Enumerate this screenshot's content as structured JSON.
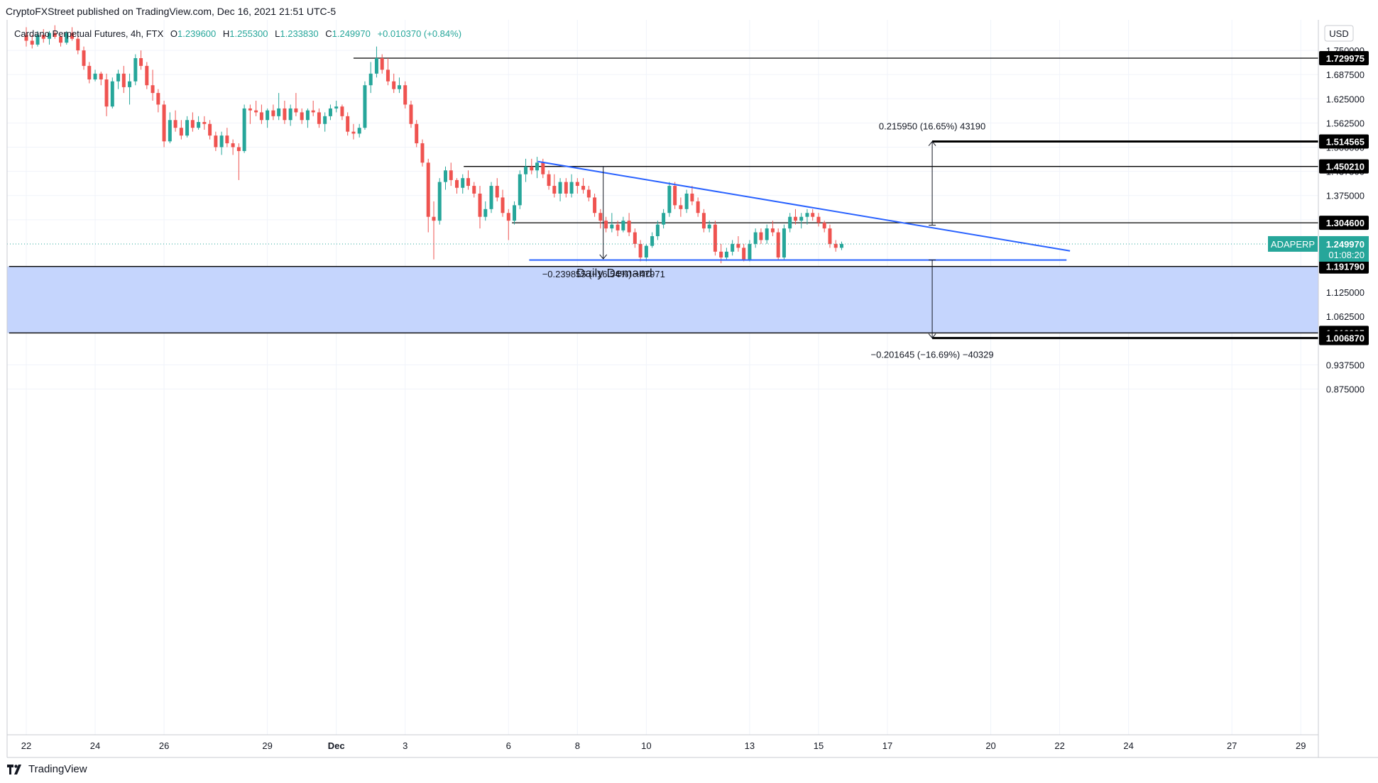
{
  "header": {
    "published": "CryptoFXStreet published on TradingView.com, Dec 16, 2021 21:51 UTC-5",
    "symbol": "Cardano Perpetual Futures, 4h, FTX",
    "o_label": "O",
    "o": "1.239600",
    "h_label": "H",
    "h": "1.255300",
    "l_label": "L",
    "l": "1.233830",
    "c_label": "C",
    "c": "1.249970",
    "change": "+0.010370 (+0.84%)"
  },
  "currency_button": "USD",
  "footer": {
    "brand": "TradingView"
  },
  "colors": {
    "up": "#26a69a",
    "down": "#ef5350",
    "trendline": "#2962ff",
    "demand_zone": "#c5d5fd",
    "price_tag": "#26a69a",
    "level_tag": "#000000"
  },
  "chart_data": {
    "type": "candlestick",
    "symbol": "ADAPERP",
    "timeframe": "4h",
    "y_ticks": [
      "1.750000",
      "1.687500",
      "1.625000",
      "1.562500",
      "1.500000",
      "1.437500",
      "1.375000",
      "1.312500",
      "1.125000",
      "1.062500",
      "0.937500",
      "0.875000"
    ],
    "ylim": [
      0.85,
      1.8
    ],
    "x_ticks": [
      {
        "label": "22",
        "day": 22
      },
      {
        "label": "24",
        "day": 24
      },
      {
        "label": "26",
        "day": 26
      },
      {
        "label": "29",
        "day": 29
      },
      {
        "label": "Dec",
        "day": 31
      },
      {
        "label": "3",
        "day": 33
      },
      {
        "label": "6",
        "day": 36
      },
      {
        "label": "8",
        "day": 38
      },
      {
        "label": "10",
        "day": 40
      },
      {
        "label": "13",
        "day": 43
      },
      {
        "label": "15",
        "day": 45
      },
      {
        "label": "17",
        "day": 47
      },
      {
        "label": "20",
        "day": 50
      },
      {
        "label": "22",
        "day": 52
      },
      {
        "label": "24",
        "day": 54
      },
      {
        "label": "27",
        "day": 57
      },
      {
        "label": "29",
        "day": 59
      }
    ],
    "x_range_days": [
      21.5,
      60.3
    ],
    "levels": [
      {
        "label": "1.729975",
        "value": 1.729975,
        "x_from_day": 31.5,
        "thick": false
      },
      {
        "label": "1.514565",
        "value": 1.514565,
        "x_from_day": 48.3,
        "thick": true
      },
      {
        "label": "1.450210",
        "value": 1.45021,
        "x_from_day": 34.7,
        "thick": false
      },
      {
        "label": "1.304600",
        "value": 1.3046,
        "x_from_day": 36.1,
        "thick": false
      },
      {
        "label": "1.191790",
        "value": 1.19179,
        "x_from_day": 21.5,
        "thick": false
      },
      {
        "label": "1.019995",
        "value": 1.019995,
        "x_from_day": 21.5,
        "thick": false
      },
      {
        "label": "1.006870",
        "value": 1.00687,
        "x_from_day": 48.3,
        "thick": true
      }
    ],
    "current_price": {
      "symbol": "ADAPERP",
      "price": "1.249970",
      "countdown": "01:08:20",
      "value": 1.24997
    },
    "demand_zone": {
      "label": "Daily Demand",
      "top": 1.19179,
      "bottom": 1.019995
    },
    "trendlines": [
      {
        "name": "descending",
        "x1_day": 36.85,
        "y1": 1.463,
        "x2_day": 52.3,
        "y2": 1.232
      },
      {
        "name": "support",
        "x1_day": 36.6,
        "y1": 1.2085,
        "x2_day": 52.2,
        "y2": 1.2085
      }
    ],
    "measurements": [
      {
        "text": "0.215950 (16.65%) 43190",
        "x_day": 48.3,
        "from": 1.2985,
        "to": 1.5145
      },
      {
        "text": "−0.239855 (−16.54%) −47971",
        "x_day": 38.75,
        "from": 1.45,
        "to": 1.2115
      },
      {
        "text": "−0.201645 (−16.69%) −40329",
        "x_day": 48.3,
        "from": 1.2085,
        "to": 1.0069
      }
    ],
    "candles": [
      [
        22.0,
        1.79,
        1.81,
        1.76,
        1.775
      ],
      [
        22.17,
        1.775,
        1.79,
        1.755,
        1.765
      ],
      [
        22.33,
        1.765,
        1.8,
        1.76,
        1.79
      ],
      [
        22.5,
        1.79,
        1.805,
        1.77,
        1.78
      ],
      [
        22.67,
        1.78,
        1.8,
        1.765,
        1.795
      ],
      [
        22.83,
        1.795,
        1.815,
        1.78,
        1.785
      ],
      [
        23.0,
        1.785,
        1.79,
        1.76,
        1.77
      ],
      [
        23.17,
        1.77,
        1.8,
        1.765,
        1.795
      ],
      [
        23.33,
        1.795,
        1.81,
        1.775,
        1.78
      ],
      [
        23.5,
        1.78,
        1.79,
        1.74,
        1.75
      ],
      [
        23.67,
        1.75,
        1.76,
        1.7,
        1.71
      ],
      [
        23.83,
        1.71,
        1.72,
        1.665,
        1.675
      ],
      [
        24.0,
        1.675,
        1.7,
        1.67,
        1.69
      ],
      [
        24.17,
        1.69,
        1.695,
        1.66,
        1.675
      ],
      [
        24.33,
        1.675,
        1.69,
        1.58,
        1.605
      ],
      [
        24.5,
        1.605,
        1.68,
        1.6,
        1.67
      ],
      [
        24.67,
        1.67,
        1.7,
        1.65,
        1.69
      ],
      [
        24.83,
        1.69,
        1.71,
        1.64,
        1.655
      ],
      [
        25.0,
        1.655,
        1.69,
        1.61,
        1.67
      ],
      [
        25.17,
        1.67,
        1.74,
        1.66,
        1.73
      ],
      [
        25.33,
        1.73,
        1.75,
        1.7,
        1.71
      ],
      [
        25.5,
        1.71,
        1.72,
        1.65,
        1.66
      ],
      [
        25.67,
        1.66,
        1.7,
        1.62,
        1.64
      ],
      [
        25.83,
        1.64,
        1.65,
        1.59,
        1.61
      ],
      [
        26.0,
        1.61,
        1.62,
        1.5,
        1.515
      ],
      [
        26.17,
        1.515,
        1.59,
        1.51,
        1.57
      ],
      [
        26.33,
        1.57,
        1.595,
        1.54,
        1.55
      ],
      [
        26.5,
        1.55,
        1.57,
        1.52,
        1.53
      ],
      [
        26.67,
        1.53,
        1.58,
        1.525,
        1.57
      ],
      [
        26.83,
        1.57,
        1.59,
        1.54,
        1.55
      ],
      [
        27.0,
        1.55,
        1.58,
        1.545,
        1.565
      ],
      [
        27.17,
        1.565,
        1.58,
        1.545,
        1.56
      ],
      [
        27.33,
        1.56,
        1.57,
        1.52,
        1.53
      ],
      [
        27.5,
        1.53,
        1.54,
        1.49,
        1.5
      ],
      [
        27.67,
        1.5,
        1.54,
        1.48,
        1.53
      ],
      [
        27.83,
        1.53,
        1.55,
        1.5,
        1.51
      ],
      [
        28.0,
        1.51,
        1.52,
        1.48,
        1.5
      ],
      [
        28.17,
        1.5,
        1.51,
        1.415,
        1.49
      ],
      [
        28.33,
        1.49,
        1.61,
        1.485,
        1.6
      ],
      [
        28.5,
        1.6,
        1.61,
        1.56,
        1.595
      ],
      [
        28.67,
        1.595,
        1.62,
        1.58,
        1.59
      ],
      [
        28.83,
        1.59,
        1.61,
        1.56,
        1.57
      ],
      [
        29.0,
        1.57,
        1.6,
        1.55,
        1.595
      ],
      [
        29.17,
        1.595,
        1.61,
        1.57,
        1.58
      ],
      [
        29.33,
        1.58,
        1.64,
        1.57,
        1.6
      ],
      [
        29.5,
        1.6,
        1.62,
        1.56,
        1.57
      ],
      [
        29.67,
        1.57,
        1.61,
        1.555,
        1.6
      ],
      [
        29.83,
        1.6,
        1.64,
        1.58,
        1.59
      ],
      [
        30.0,
        1.59,
        1.6,
        1.56,
        1.57
      ],
      [
        30.17,
        1.57,
        1.6,
        1.55,
        1.595
      ],
      [
        30.33,
        1.595,
        1.62,
        1.58,
        1.59
      ],
      [
        30.5,
        1.59,
        1.6,
        1.55,
        1.56
      ],
      [
        30.67,
        1.56,
        1.59,
        1.54,
        1.58
      ],
      [
        30.83,
        1.58,
        1.61,
        1.57,
        1.6
      ],
      [
        31.0,
        1.6,
        1.62,
        1.59,
        1.605
      ],
      [
        31.17,
        1.605,
        1.61,
        1.57,
        1.58
      ],
      [
        31.33,
        1.58,
        1.59,
        1.53,
        1.54
      ],
      [
        31.5,
        1.54,
        1.56,
        1.52,
        1.535
      ],
      [
        31.67,
        1.535,
        1.56,
        1.525,
        1.55
      ],
      [
        31.83,
        1.55,
        1.67,
        1.545,
        1.66
      ],
      [
        32.0,
        1.66,
        1.72,
        1.64,
        1.69
      ],
      [
        32.17,
        1.69,
        1.76,
        1.68,
        1.73
      ],
      [
        32.33,
        1.73,
        1.74,
        1.69,
        1.7
      ],
      [
        32.5,
        1.7,
        1.73,
        1.66,
        1.67
      ],
      [
        32.67,
        1.67,
        1.69,
        1.64,
        1.65
      ],
      [
        32.83,
        1.65,
        1.68,
        1.64,
        1.66
      ],
      [
        33.0,
        1.66,
        1.67,
        1.6,
        1.61
      ],
      [
        33.17,
        1.61,
        1.62,
        1.55,
        1.56
      ],
      [
        33.33,
        1.56,
        1.57,
        1.5,
        1.51
      ],
      [
        33.5,
        1.51,
        1.52,
        1.45,
        1.46
      ],
      [
        33.67,
        1.46,
        1.47,
        1.28,
        1.32
      ],
      [
        33.83,
        1.32,
        1.36,
        1.21,
        1.31
      ],
      [
        34.0,
        1.31,
        1.42,
        1.3,
        1.41
      ],
      [
        34.17,
        1.41,
        1.45,
        1.39,
        1.44
      ],
      [
        34.33,
        1.44,
        1.46,
        1.4,
        1.415
      ],
      [
        34.5,
        1.415,
        1.42,
        1.38,
        1.395
      ],
      [
        34.67,
        1.395,
        1.43,
        1.38,
        1.42
      ],
      [
        34.83,
        1.42,
        1.44,
        1.39,
        1.4
      ],
      [
        35.0,
        1.4,
        1.41,
        1.37,
        1.38
      ],
      [
        35.17,
        1.38,
        1.4,
        1.29,
        1.32
      ],
      [
        35.33,
        1.32,
        1.36,
        1.31,
        1.34
      ],
      [
        35.5,
        1.34,
        1.41,
        1.33,
        1.4
      ],
      [
        35.67,
        1.4,
        1.42,
        1.36,
        1.37
      ],
      [
        35.83,
        1.37,
        1.39,
        1.32,
        1.33
      ],
      [
        36.0,
        1.33,
        1.34,
        1.26,
        1.31
      ],
      [
        36.17,
        1.31,
        1.36,
        1.3,
        1.35
      ],
      [
        36.33,
        1.35,
        1.44,
        1.34,
        1.43
      ],
      [
        36.5,
        1.43,
        1.47,
        1.41,
        1.45
      ],
      [
        36.67,
        1.45,
        1.47,
        1.43,
        1.44
      ],
      [
        36.83,
        1.44,
        1.475,
        1.42,
        1.46
      ],
      [
        37.0,
        1.46,
        1.47,
        1.42,
        1.43
      ],
      [
        37.17,
        1.43,
        1.44,
        1.39,
        1.4
      ],
      [
        37.33,
        1.4,
        1.43,
        1.37,
        1.38
      ],
      [
        37.5,
        1.38,
        1.42,
        1.36,
        1.41
      ],
      [
        37.67,
        1.41,
        1.42,
        1.37,
        1.38
      ],
      [
        37.83,
        1.38,
        1.43,
        1.37,
        1.41
      ],
      [
        38.0,
        1.41,
        1.42,
        1.38,
        1.4
      ],
      [
        38.17,
        1.4,
        1.42,
        1.38,
        1.39
      ],
      [
        38.33,
        1.39,
        1.4,
        1.36,
        1.37
      ],
      [
        38.5,
        1.37,
        1.38,
        1.32,
        1.33
      ],
      [
        38.67,
        1.33,
        1.34,
        1.29,
        1.31
      ],
      [
        38.83,
        1.31,
        1.32,
        1.28,
        1.29
      ],
      [
        39.0,
        1.29,
        1.33,
        1.28,
        1.3
      ],
      [
        39.17,
        1.3,
        1.31,
        1.27,
        1.285
      ],
      [
        39.33,
        1.285,
        1.32,
        1.28,
        1.31
      ],
      [
        39.5,
        1.31,
        1.33,
        1.27,
        1.28
      ],
      [
        39.67,
        1.28,
        1.29,
        1.24,
        1.25
      ],
      [
        39.83,
        1.25,
        1.26,
        1.205,
        1.215
      ],
      [
        40.0,
        1.215,
        1.25,
        1.205,
        1.245
      ],
      [
        40.17,
        1.245,
        1.28,
        1.24,
        1.27
      ],
      [
        40.33,
        1.27,
        1.31,
        1.26,
        1.3
      ],
      [
        40.5,
        1.3,
        1.34,
        1.29,
        1.33
      ],
      [
        40.67,
        1.33,
        1.41,
        1.32,
        1.4
      ],
      [
        40.83,
        1.4,
        1.41,
        1.34,
        1.35
      ],
      [
        41.0,
        1.35,
        1.37,
        1.32,
        1.34
      ],
      [
        41.17,
        1.34,
        1.39,
        1.33,
        1.38
      ],
      [
        41.33,
        1.38,
        1.4,
        1.35,
        1.36
      ],
      [
        41.5,
        1.36,
        1.37,
        1.32,
        1.33
      ],
      [
        41.67,
        1.33,
        1.34,
        1.28,
        1.29
      ],
      [
        41.83,
        1.29,
        1.31,
        1.28,
        1.3
      ],
      [
        42.0,
        1.3,
        1.31,
        1.22,
        1.23
      ],
      [
        42.17,
        1.23,
        1.25,
        1.2,
        1.215
      ],
      [
        42.33,
        1.215,
        1.24,
        1.21,
        1.23
      ],
      [
        42.5,
        1.23,
        1.26,
        1.22,
        1.25
      ],
      [
        42.67,
        1.25,
        1.27,
        1.23,
        1.24
      ],
      [
        42.83,
        1.24,
        1.25,
        1.205,
        1.21
      ],
      [
        43.0,
        1.21,
        1.26,
        1.205,
        1.25
      ],
      [
        43.17,
        1.25,
        1.29,
        1.24,
        1.28
      ],
      [
        43.33,
        1.28,
        1.29,
        1.25,
        1.26
      ],
      [
        43.5,
        1.26,
        1.3,
        1.25,
        1.29
      ],
      [
        43.67,
        1.29,
        1.31,
        1.27,
        1.28
      ],
      [
        43.83,
        1.28,
        1.29,
        1.21,
        1.215
      ],
      [
        44.0,
        1.215,
        1.3,
        1.21,
        1.29
      ],
      [
        44.17,
        1.29,
        1.33,
        1.28,
        1.32
      ],
      [
        44.33,
        1.32,
        1.34,
        1.3,
        1.31
      ],
      [
        44.5,
        1.31,
        1.33,
        1.29,
        1.32
      ],
      [
        44.67,
        1.32,
        1.34,
        1.3,
        1.33
      ],
      [
        44.83,
        1.33,
        1.34,
        1.31,
        1.32
      ],
      [
        45.0,
        1.32,
        1.33,
        1.295,
        1.305
      ],
      [
        45.17,
        1.305,
        1.31,
        1.28,
        1.29
      ],
      [
        45.33,
        1.29,
        1.3,
        1.24,
        1.25
      ],
      [
        45.5,
        1.25,
        1.26,
        1.23,
        1.24
      ],
      [
        45.67,
        1.24,
        1.256,
        1.234,
        1.25
      ]
    ]
  }
}
